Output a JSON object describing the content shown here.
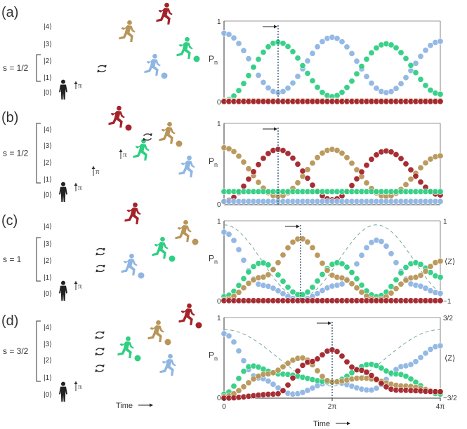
{
  "colors": {
    "level4": "#a3232a",
    "level3": "#b89558",
    "level2": "#2fcf83",
    "level1": "#8fb6e3",
    "level0": "#7a8591",
    "pi_green": "#2fcf83",
    "pi_blue": "#8fb6e3"
  },
  "icons": [
    "runner-icon",
    "ball-icon",
    "swap-arrows-icon",
    "pi-pulse-arrow-icon",
    "standing-person-icon"
  ],
  "time_label": "Time",
  "panels": [
    {
      "label": "(a)",
      "spin": "s = 1/2",
      "levels": [
        "|4⟩",
        "|3⟩",
        "|2⟩",
        "|1⟩",
        "|0⟩"
      ],
      "chart": {
        "type": "scatter",
        "ylabel": "P",
        "ylabel_sub": "n",
        "ylim": [
          0,
          1
        ],
        "y_ticks_left": [
          "0",
          "1"
        ],
        "right_axis": null,
        "marker_time": 3.1416,
        "xlim": [
          0,
          12.566
        ]
      }
    },
    {
      "label": "(b)",
      "spin": "s = 1/2",
      "levels": [
        "|4⟩",
        "|3⟩",
        "|2⟩",
        "|1⟩",
        "|0⟩"
      ],
      "chart": {
        "type": "scatter",
        "ylabel": "P",
        "ylabel_sub": "n",
        "ylim": [
          0,
          1
        ],
        "y_ticks_left": [
          "0",
          "1"
        ],
        "right_axis": null,
        "marker_time": 3.1416,
        "xlim": [
          0,
          12.566
        ]
      }
    },
    {
      "label": "(c)",
      "spin": "s = 1",
      "levels": [
        "|4⟩",
        "|3⟩",
        "|2⟩",
        "|1⟩",
        "|0⟩"
      ],
      "chart": {
        "type": "scatter",
        "ylabel": "P",
        "ylabel_sub": "n",
        "ylim": [
          0,
          1
        ],
        "y_ticks_left": [
          "0",
          "1"
        ],
        "right_axis": {
          "label": "⟨Z⟩",
          "top": "1",
          "bottom": "−1"
        },
        "marker_time": 4.443,
        "xlim": [
          0,
          12.566
        ]
      }
    },
    {
      "label": "(d)",
      "spin": "s = 3/2",
      "levels": [
        "|4⟩",
        "|3⟩",
        "|2⟩",
        "|1⟩",
        "|0⟩"
      ],
      "chart": {
        "type": "scatter",
        "ylabel": "P",
        "ylabel_sub": "n",
        "ylim": [
          0,
          1
        ],
        "y_ticks_left": [
          "0",
          "1"
        ],
        "right_axis": {
          "label": "⟨Z⟩",
          "top": "3/2",
          "bottom": "−3/2"
        },
        "marker_time": 6.2832,
        "xlim": [
          0,
          12.566
        ],
        "x_ticks": [
          "0",
          "2π",
          "4π"
        ]
      }
    }
  ],
  "chart_data": [
    {
      "type": "scatter",
      "title": "",
      "xlabel": "",
      "ylabel": "Pn",
      "xlim": [
        0,
        12.566
      ],
      "ylim": [
        0,
        1
      ],
      "series": [
        {
          "color": "#8fb6e3",
          "x": [
            0,
            3.14,
            6.28,
            9.42,
            12.57
          ],
          "y": [
            0.85,
            0.12,
            0.8,
            0.12,
            0.75
          ]
        },
        {
          "color": "#2fcf83",
          "x": [
            0,
            3.14,
            6.28,
            9.42,
            12.57
          ],
          "y": [
            0.02,
            0.74,
            0.07,
            0.72,
            0.1
          ]
        },
        {
          "color": "#b89558",
          "x": [
            0,
            12.57
          ],
          "y": [
            0.02,
            0.02
          ]
        },
        {
          "color": "#a3232a",
          "x": [
            0,
            12.57
          ],
          "y": [
            0.01,
            0.01
          ]
        }
      ]
    },
    {
      "type": "scatter",
      "title": "",
      "xlabel": "",
      "ylabel": "Pn",
      "xlim": [
        0,
        12.566
      ],
      "ylim": [
        0,
        1
      ],
      "series": [
        {
          "color": "#b89558",
          "x": [
            0,
            3.14,
            6.28,
            9.42,
            12.57
          ],
          "y": [
            0.7,
            0.1,
            0.68,
            0.1,
            0.6
          ]
        },
        {
          "color": "#a3232a",
          "x": [
            0,
            3.14,
            6.28,
            9.42,
            12.57
          ],
          "y": [
            0.04,
            0.68,
            0.06,
            0.66,
            0.12
          ]
        },
        {
          "color": "#2fcf83",
          "x": [
            0,
            12.57
          ],
          "y": [
            0.16,
            0.16
          ]
        },
        {
          "color": "#8fb6e3",
          "x": [
            0,
            12.57
          ],
          "y": [
            0.04,
            0.04
          ]
        }
      ]
    },
    {
      "type": "scatter",
      "title": "",
      "xlabel": "",
      "ylabel": "Pn",
      "xlim": [
        0,
        12.566
      ],
      "ylim": [
        0,
        1
      ],
      "right_axis": "⟨Z⟩",
      "series": [
        {
          "color": "#8fb6e3",
          "x": [
            0,
            2.2,
            4.44,
            6.6,
            8.9,
            11.1,
            12.57
          ],
          "y": [
            0.86,
            0.2,
            0.02,
            0.2,
            0.76,
            0.2,
            0.1
          ]
        },
        {
          "color": "#2fcf83",
          "x": [
            0,
            2.2,
            4.44,
            6.6,
            8.9,
            11.1,
            12.57
          ],
          "y": [
            0.06,
            0.48,
            0.08,
            0.48,
            0.06,
            0.48,
            0.3
          ]
        },
        {
          "color": "#b89558",
          "x": [
            0,
            2.2,
            4.44,
            6.6,
            8.9,
            11.1,
            12.57
          ],
          "y": [
            0.02,
            0.3,
            0.78,
            0.3,
            0.02,
            0.3,
            0.5
          ]
        },
        {
          "color": "#a3232a",
          "x": [
            0,
            12.57
          ],
          "y": [
            0.01,
            0.01
          ]
        }
      ]
    },
    {
      "type": "scatter",
      "title": "",
      "xlabel": "Time",
      "ylabel": "Pn",
      "xlim": [
        0,
        12.566
      ],
      "ylim": [
        0,
        1
      ],
      "right_axis": "⟨Z⟩",
      "series": [
        {
          "color": "#8fb6e3",
          "x": [
            0,
            2.0,
            4.0,
            6.28,
            8.5,
            10.5,
            12.57
          ],
          "y": [
            0.8,
            0.25,
            0.05,
            0.2,
            0.1,
            0.4,
            0.65
          ]
        },
        {
          "color": "#2fcf83",
          "x": [
            0,
            1.6,
            3.2,
            6.28,
            8.5,
            10.0,
            12.57
          ],
          "y": [
            0.05,
            0.4,
            0.3,
            0.2,
            0.42,
            0.3,
            0.05
          ]
        },
        {
          "color": "#b89558",
          "x": [
            0,
            2.5,
            4.5,
            6.28,
            8.0,
            10.5,
            12.57
          ],
          "y": [
            0.02,
            0.3,
            0.5,
            0.2,
            0.25,
            0.15,
            0.08
          ]
        },
        {
          "color": "#a3232a",
          "x": [
            0,
            3.0,
            5.0,
            6.28,
            7.8,
            10.0,
            12.57
          ],
          "y": [
            0.0,
            0.05,
            0.45,
            0.6,
            0.35,
            0.1,
            0.08
          ]
        }
      ]
    }
  ]
}
